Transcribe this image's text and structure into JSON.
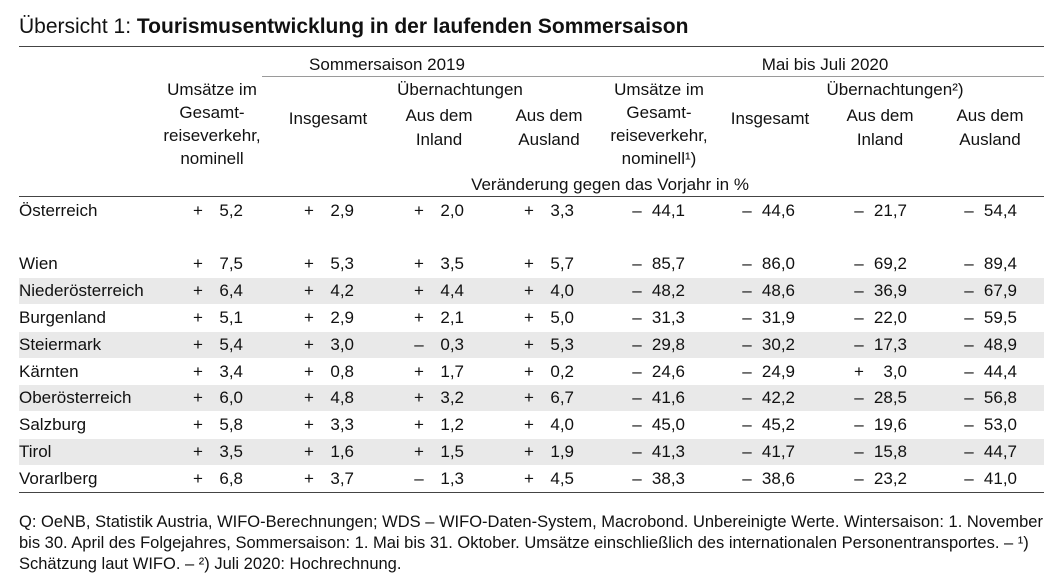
{
  "title": {
    "prefix": "Übersicht 1: ",
    "bold": "Tourismusentwicklung in der laufenden Sommersaison"
  },
  "header": {
    "period1": "Sommersaison 2019",
    "period2": "Mai bis Juli 2020",
    "naechtigungen1": "Übernachtungen",
    "naechtigungen2": "Übernachtungen²)",
    "umsaetze1": [
      "Umsätze im",
      "Gesamt-",
      "reiseverkehr,",
      "nominell"
    ],
    "umsaetze2": [
      "Umsätze im",
      "Gesamt-",
      "reiseverkehr,",
      "nominell¹)"
    ],
    "insgesamt": "Insgesamt",
    "inland": [
      "Aus dem",
      "Inland"
    ],
    "ausland": [
      "Aus dem",
      "Ausland"
    ],
    "unit": "Veränderung gegen das Vorjahr in %"
  },
  "rows": [
    {
      "label": "Österreich",
      "values": [
        [
          "+",
          "5,2"
        ],
        [
          "+",
          "2,9"
        ],
        [
          "+",
          "2,0"
        ],
        [
          "+",
          "3,3"
        ],
        [
          "–",
          "44,1"
        ],
        [
          "–",
          "44,6"
        ],
        [
          "–",
          "21,7"
        ],
        [
          "–",
          "54,4"
        ]
      ]
    },
    {
      "label": "Wien",
      "values": [
        [
          "+",
          "7,5"
        ],
        [
          "+",
          "5,3"
        ],
        [
          "+",
          "3,5"
        ],
        [
          "+",
          "5,7"
        ],
        [
          "–",
          "85,7"
        ],
        [
          "–",
          "86,0"
        ],
        [
          "–",
          "69,2"
        ],
        [
          "–",
          "89,4"
        ]
      ]
    },
    {
      "label": "Niederösterreich",
      "values": [
        [
          "+",
          "6,4"
        ],
        [
          "+",
          "4,2"
        ],
        [
          "+",
          "4,4"
        ],
        [
          "+",
          "4,0"
        ],
        [
          "–",
          "48,2"
        ],
        [
          "–",
          "48,6"
        ],
        [
          "–",
          "36,9"
        ],
        [
          "–",
          "67,9"
        ]
      ]
    },
    {
      "label": "Burgenland",
      "values": [
        [
          "+",
          "5,1"
        ],
        [
          "+",
          "2,9"
        ],
        [
          "+",
          "2,1"
        ],
        [
          "+",
          "5,0"
        ],
        [
          "–",
          "31,3"
        ],
        [
          "–",
          "31,9"
        ],
        [
          "–",
          "22,0"
        ],
        [
          "–",
          "59,5"
        ]
      ]
    },
    {
      "label": "Steiermark",
      "values": [
        [
          "+",
          "5,4"
        ],
        [
          "+",
          "3,0"
        ],
        [
          "–",
          "0,3"
        ],
        [
          "+",
          "5,3"
        ],
        [
          "–",
          "29,8"
        ],
        [
          "–",
          "30,2"
        ],
        [
          "–",
          "17,3"
        ],
        [
          "–",
          "48,9"
        ]
      ]
    },
    {
      "label": "Kärnten",
      "values": [
        [
          "+",
          "3,4"
        ],
        [
          "+",
          "0,8"
        ],
        [
          "+",
          "1,7"
        ],
        [
          "+",
          "0,2"
        ],
        [
          "–",
          "24,6"
        ],
        [
          "–",
          "24,9"
        ],
        [
          "+",
          "3,0"
        ],
        [
          "–",
          "44,4"
        ]
      ]
    },
    {
      "label": "Oberösterreich",
      "values": [
        [
          "+",
          "6,0"
        ],
        [
          "+",
          "4,8"
        ],
        [
          "+",
          "3,2"
        ],
        [
          "+",
          "6,7"
        ],
        [
          "–",
          "41,6"
        ],
        [
          "–",
          "42,2"
        ],
        [
          "–",
          "28,5"
        ],
        [
          "–",
          "56,8"
        ]
      ]
    },
    {
      "label": "Salzburg",
      "values": [
        [
          "+",
          "5,8"
        ],
        [
          "+",
          "3,3"
        ],
        [
          "+",
          "1,2"
        ],
        [
          "+",
          "4,0"
        ],
        [
          "–",
          "45,0"
        ],
        [
          "–",
          "45,2"
        ],
        [
          "–",
          "19,6"
        ],
        [
          "–",
          "53,0"
        ]
      ]
    },
    {
      "label": "Tirol",
      "values": [
        [
          "+",
          "3,5"
        ],
        [
          "+",
          "1,6"
        ],
        [
          "+",
          "1,5"
        ],
        [
          "+",
          "1,9"
        ],
        [
          "–",
          "41,3"
        ],
        [
          "–",
          "41,7"
        ],
        [
          "–",
          "15,8"
        ],
        [
          "–",
          "44,7"
        ]
      ]
    },
    {
      "label": "Vorarlberg",
      "values": [
        [
          "+",
          "6,8"
        ],
        [
          "+",
          "3,7"
        ],
        [
          "–",
          "1,3"
        ],
        [
          "+",
          "4,5"
        ],
        [
          "–",
          "38,3"
        ],
        [
          "–",
          "38,6"
        ],
        [
          "–",
          "23,2"
        ],
        [
          "–",
          "41,0"
        ]
      ]
    }
  ],
  "source": "Q: OeNB, Statistik Austria, WIFO-Berechnungen; WDS – WIFO-Daten-System, Macrobond. Unbereinigte Werte. Wintersaison: 1. November bis 30. April des Folgejahres, Sommersaison: 1. Mai bis 31. Oktober. Umsätze einschließlich des internationalen Personentransportes. – ¹) Schätzung laut WIFO. – ²) Juli 2020: Hochrechnung."
}
